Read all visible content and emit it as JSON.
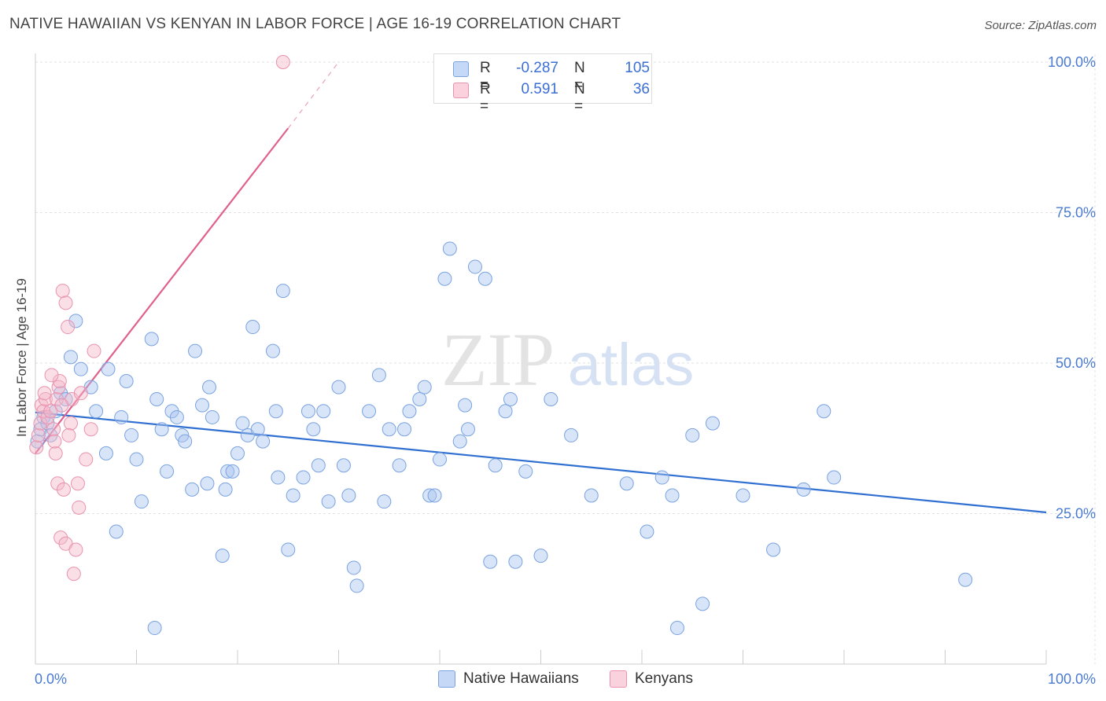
{
  "header": {
    "title": "NATIVE HAWAIIAN VS KENYAN IN LABOR FORCE | AGE 16-19 CORRELATION CHART",
    "source": "Source: ZipAtlas.com"
  },
  "watermark": {
    "zip": "ZIP",
    "atlas": "atlas"
  },
  "legend": {
    "rows": [
      {
        "r_label": "R =",
        "r_value": "-0.287",
        "n_label": "N =",
        "n_value": "105",
        "color": "#a8c4ef"
      },
      {
        "r_label": "R =",
        "r_value": "0.591",
        "n_label": "N =",
        "n_value": "36",
        "color": "#f5b7c9"
      }
    ]
  },
  "bottom_legend": {
    "items": [
      {
        "label": "Native Hawaiians",
        "color": "#a8c4ef"
      },
      {
        "label": "Kenyans",
        "color": "#f5b7c9"
      }
    ]
  },
  "chart_data": {
    "type": "scatter",
    "title": "NATIVE HAWAIIAN VS KENYAN IN LABOR FORCE | AGE 16-19 CORRELATION CHART",
    "xlabel": "",
    "ylabel": "In Labor Force | Age 16-19",
    "xlim": [
      0,
      100
    ],
    "ylim": [
      0,
      100
    ],
    "x_tick_labels": [
      "0.0%",
      "100.0%"
    ],
    "y_ticks": [
      25,
      50,
      75,
      100
    ],
    "y_tick_labels": [
      "25.0%",
      "50.0%",
      "75.0%",
      "100.0%"
    ],
    "grid": true,
    "series": [
      {
        "name": "Native Hawaiians",
        "color": "#a8c4ef",
        "edge": "#7aa3e0",
        "trend": {
          "x": [
            0,
            100
          ],
          "y": [
            41.8,
            25.2
          ],
          "color": "#2f6fd1"
        },
        "points": [
          [
            0.2,
            37
          ],
          [
            0.5,
            39
          ],
          [
            0.8,
            41
          ],
          [
            1.2,
            40
          ],
          [
            1.5,
            38
          ],
          [
            2,
            42
          ],
          [
            2.5,
            45
          ],
          [
            3,
            44
          ],
          [
            3.5,
            51
          ],
          [
            4,
            57
          ],
          [
            4.5,
            49
          ],
          [
            5.5,
            46
          ],
          [
            6,
            42
          ],
          [
            7,
            35
          ],
          [
            7.2,
            49
          ],
          [
            8,
            22
          ],
          [
            8.5,
            41
          ],
          [
            9,
            47
          ],
          [
            9.5,
            38
          ],
          [
            10,
            34
          ],
          [
            10.5,
            27
          ],
          [
            11.5,
            54
          ],
          [
            11.8,
            6
          ],
          [
            12,
            44
          ],
          [
            12.5,
            39
          ],
          [
            13,
            32
          ],
          [
            13.5,
            42
          ],
          [
            14,
            41
          ],
          [
            14.5,
            38
          ],
          [
            14.8,
            37
          ],
          [
            15.5,
            29
          ],
          [
            15.8,
            52
          ],
          [
            16.5,
            43
          ],
          [
            17,
            30
          ],
          [
            17.2,
            46
          ],
          [
            17.5,
            41
          ],
          [
            18.5,
            18
          ],
          [
            18.8,
            29
          ],
          [
            19,
            32
          ],
          [
            19.5,
            32
          ],
          [
            20,
            35
          ],
          [
            20.5,
            40
          ],
          [
            21,
            38
          ],
          [
            21.5,
            56
          ],
          [
            22,
            39
          ],
          [
            22.5,
            37
          ],
          [
            23.5,
            52
          ],
          [
            23.8,
            42
          ],
          [
            24,
            31
          ],
          [
            24.5,
            62
          ],
          [
            25,
            19
          ],
          [
            25.5,
            28
          ],
          [
            26.5,
            31
          ],
          [
            27,
            42
          ],
          [
            27.5,
            39
          ],
          [
            28,
            33
          ],
          [
            28.5,
            42
          ],
          [
            29,
            27
          ],
          [
            30,
            46
          ],
          [
            30.5,
            33
          ],
          [
            31,
            28
          ],
          [
            31.5,
            16
          ],
          [
            31.8,
            13
          ],
          [
            33,
            42
          ],
          [
            34,
            48
          ],
          [
            34.5,
            27
          ],
          [
            35,
            39
          ],
          [
            36,
            33
          ],
          [
            36.5,
            39
          ],
          [
            37,
            42
          ],
          [
            38,
            44
          ],
          [
            38.5,
            46
          ],
          [
            39,
            28
          ],
          [
            39.5,
            28
          ],
          [
            40,
            34
          ],
          [
            41,
            69
          ],
          [
            40.5,
            64
          ],
          [
            42,
            37
          ],
          [
            42.5,
            43
          ],
          [
            42.8,
            39
          ],
          [
            43.5,
            66
          ],
          [
            44.5,
            64
          ],
          [
            45,
            17
          ],
          [
            45.5,
            33
          ],
          [
            46.5,
            42
          ],
          [
            47,
            44
          ],
          [
            47.5,
            17
          ],
          [
            48.5,
            32
          ],
          [
            50,
            18
          ],
          [
            51,
            44
          ],
          [
            53,
            38
          ],
          [
            55,
            28
          ],
          [
            58.5,
            30
          ],
          [
            60.5,
            22
          ],
          [
            62,
            31
          ],
          [
            63,
            28
          ],
          [
            65,
            38
          ],
          [
            66,
            10
          ],
          [
            67,
            40
          ],
          [
            70,
            28
          ],
          [
            73,
            19
          ],
          [
            76,
            29
          ],
          [
            78,
            42
          ],
          [
            79,
            31
          ],
          [
            92,
            14
          ],
          [
            63.5,
            6
          ]
        ]
      },
      {
        "name": "Kenyans",
        "color": "#f5b7c9",
        "edge": "#e993ad",
        "trend": {
          "x": [
            0,
            25
          ],
          "y": [
            35,
            89
          ],
          "color": "#e0608e",
          "dashed_to": [
            30,
            100
          ]
        },
        "points": [
          [
            0.1,
            36
          ],
          [
            0.3,
            38
          ],
          [
            0.5,
            40
          ],
          [
            0.6,
            43
          ],
          [
            0.8,
            42
          ],
          [
            1,
            44
          ],
          [
            1.2,
            41
          ],
          [
            1.5,
            42
          ],
          [
            1.8,
            39
          ],
          [
            2,
            35
          ],
          [
            2.1,
            44
          ],
          [
            2.2,
            30
          ],
          [
            2.3,
            46
          ],
          [
            2.4,
            47
          ],
          [
            2.5,
            21
          ],
          [
            2.7,
            62
          ],
          [
            2.8,
            29
          ],
          [
            3,
            60
          ],
          [
            3,
            20
          ],
          [
            3.2,
            56
          ],
          [
            3.5,
            40
          ],
          [
            3.6,
            44
          ],
          [
            3.8,
            15
          ],
          [
            4,
            19
          ],
          [
            4.2,
            30
          ],
          [
            4.3,
            26
          ],
          [
            4.5,
            45
          ],
          [
            5,
            34
          ],
          [
            5.5,
            39
          ],
          [
            5.8,
            52
          ],
          [
            24.5,
            100
          ],
          [
            1.6,
            48
          ],
          [
            2.6,
            43
          ],
          [
            0.9,
            45
          ],
          [
            3.3,
            38
          ],
          [
            1.9,
            37
          ]
        ]
      }
    ]
  }
}
